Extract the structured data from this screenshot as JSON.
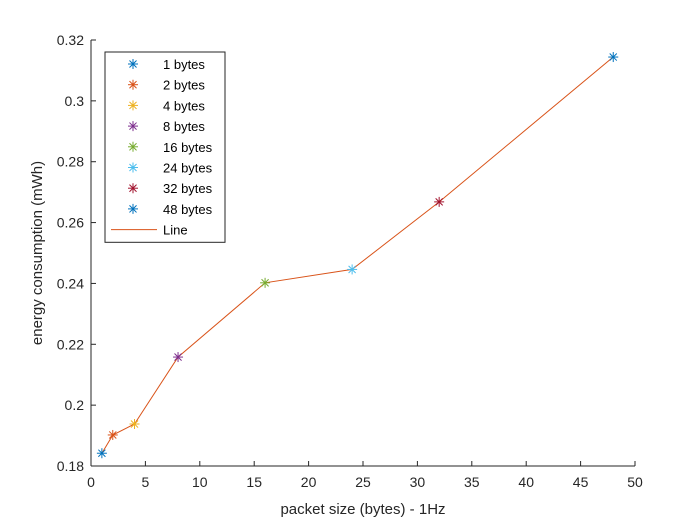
{
  "chart_data": {
    "type": "scatter",
    "title": "",
    "xlabel": "packet size (bytes) - 1Hz",
    "ylabel": "energy consumption (mWh)",
    "xlim": [
      0,
      50
    ],
    "ylim": [
      0.18,
      0.32
    ],
    "xticks": [
      0,
      5,
      10,
      15,
      20,
      25,
      30,
      35,
      40,
      45,
      50
    ],
    "yticks": [
      0.18,
      0.2,
      0.22,
      0.24,
      0.26,
      0.28,
      0.3,
      0.32
    ],
    "xtick_labels": [
      "0",
      "5",
      "10",
      "15",
      "20",
      "25",
      "30",
      "35",
      "40",
      "45",
      "50"
    ],
    "ytick_labels": [
      "0.18",
      "0.2",
      "0.22",
      "0.24",
      "0.26",
      "0.28",
      "0.3",
      "0.32"
    ],
    "grid": false,
    "legend_position": "top-left",
    "series": [
      {
        "name": "1 bytes",
        "x": 1,
        "y": 0.1842,
        "color": "#0072BD",
        "marker": "asterisk"
      },
      {
        "name": "2 bytes",
        "x": 2,
        "y": 0.1902,
        "color": "#D95319",
        "marker": "asterisk"
      },
      {
        "name": "4 bytes",
        "x": 4,
        "y": 0.1938,
        "color": "#EDB120",
        "marker": "asterisk"
      },
      {
        "name": "8 bytes",
        "x": 8,
        "y": 0.2158,
        "color": "#7E2F8E",
        "marker": "asterisk"
      },
      {
        "name": "16 bytes",
        "x": 16,
        "y": 0.2402,
        "color": "#77AC30",
        "marker": "asterisk"
      },
      {
        "name": "24 bytes",
        "x": 24,
        "y": 0.2446,
        "color": "#4DBEEE",
        "marker": "asterisk"
      },
      {
        "name": "32 bytes",
        "x": 32,
        "y": 0.2668,
        "color": "#A2142F",
        "marker": "asterisk"
      },
      {
        "name": "48 bytes",
        "x": 48,
        "y": 0.3144,
        "color": "#0072BD",
        "marker": "asterisk"
      }
    ],
    "line": {
      "name": "Line",
      "color": "#D95319",
      "x": [
        1,
        2,
        4,
        8,
        16,
        24,
        32,
        48
      ],
      "y": [
        0.1842,
        0.1902,
        0.1938,
        0.2158,
        0.2402,
        0.2446,
        0.2668,
        0.3144
      ]
    }
  }
}
